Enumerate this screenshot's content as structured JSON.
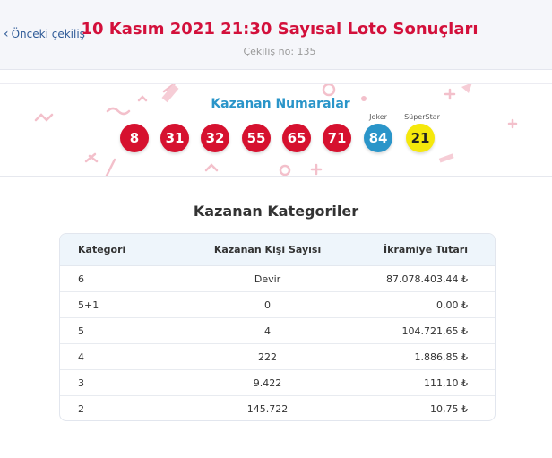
{
  "header": {
    "prev_label": "Önceki çekiliş",
    "title": "10 Kasım 2021 21:30 Sayısal Loto Sonuçları",
    "draw_no": "Çekiliş no: 135"
  },
  "numbers": {
    "label": "Kazanan Numaralar",
    "main": [
      "8",
      "31",
      "32",
      "55",
      "65",
      "71"
    ],
    "joker_label": "Joker",
    "joker": "84",
    "superstar_label": "SüperStar",
    "superstar": "21",
    "colors": {
      "main": "#d6112f",
      "joker": "#2a95c9",
      "superstar": "#f5e80b"
    }
  },
  "categories": {
    "title": "Kazanan Kategoriler",
    "headers": [
      "Kategori",
      "Kazanan Kişi Sayısı",
      "İkramiye Tutarı"
    ],
    "rows": [
      [
        "6",
        "Devir",
        "87.078.403,44 ₺"
      ],
      [
        "5+1",
        "0",
        "0,00 ₺"
      ],
      [
        "5",
        "4",
        "104.721,65 ₺"
      ],
      [
        "4",
        "222",
        "1.886,85 ₺"
      ],
      [
        "3",
        "9.422",
        "111,10 ₺"
      ],
      [
        "2",
        "145.722",
        "10,75 ₺"
      ]
    ]
  }
}
